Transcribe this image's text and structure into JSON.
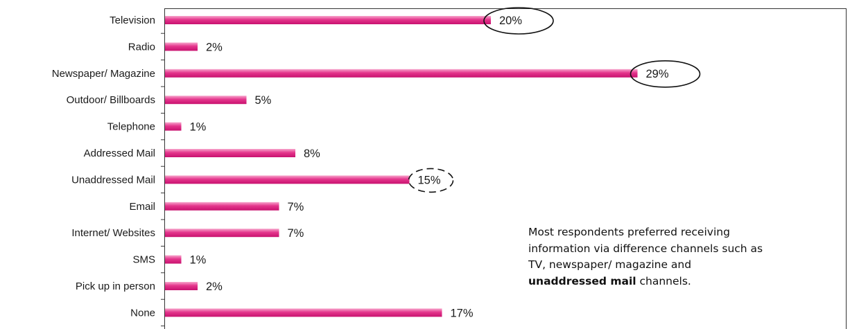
{
  "chart_data": {
    "type": "bar",
    "orientation": "horizontal",
    "categories": [
      "Television",
      "Radio",
      "Newspaper/ Magazine",
      "Outdoor/ Billboards",
      "Telephone",
      "Addressed Mail",
      "Unaddressed Mail",
      "Email",
      "Internet/ Websites",
      "SMS",
      "Pick up in person",
      "None"
    ],
    "values": [
      20,
      2,
      29,
      5,
      1,
      8,
      15,
      7,
      7,
      1,
      2,
      17
    ],
    "value_labels": [
      "20%",
      "2%",
      "29%",
      "5%",
      "1%",
      "8%",
      "15%",
      "7%",
      "7%",
      "1%",
      "2%",
      "17%"
    ],
    "unit": "%",
    "highlighted": [
      {
        "category": "Television",
        "style": "solid-ellipse"
      },
      {
        "category": "Newspaper/ Magazine",
        "style": "solid-ellipse"
      },
      {
        "category": "Unaddressed Mail",
        "style": "dashed-ellipse"
      }
    ],
    "bar_color": "#e4358c",
    "grid": false,
    "legend": "none"
  },
  "note": {
    "lines": [
      "Most respondents preferred receiving",
      "information via difference channels such as",
      "TV, newspaper/ magazine and"
    ],
    "bold": "unaddressed mail",
    "tail": " channels."
  }
}
